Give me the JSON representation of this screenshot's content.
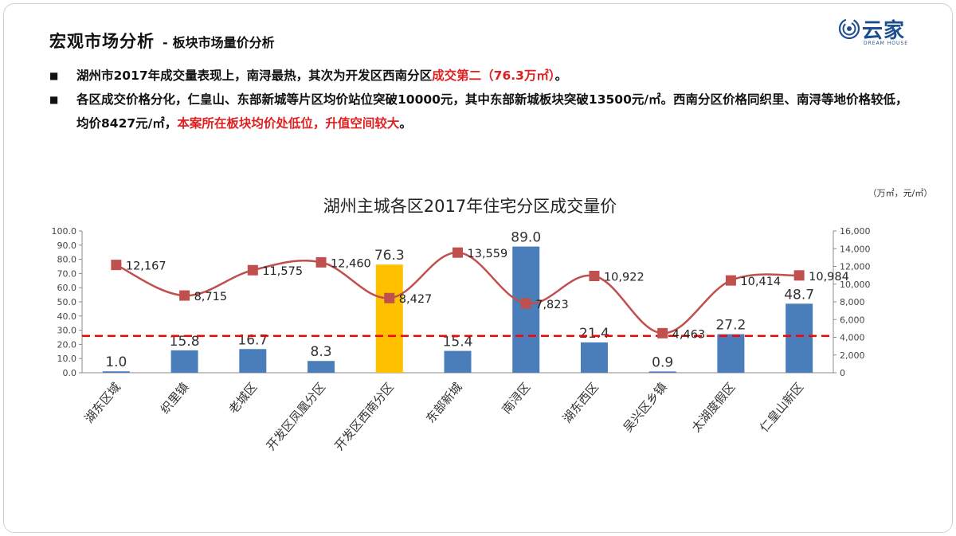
{
  "header": {
    "title": "宏观市场分析",
    "separator": "-",
    "subtitle": "板块市场量价分析"
  },
  "logo": {
    "name": "云家",
    "tagline": "DREAM HOUSE"
  },
  "bullets": [
    {
      "mark": "■",
      "text_normal": "湖州市2017年成交量表现上，南浔最热，其次为开发区西南分区",
      "text_red": "成交第二（76.3万㎡）",
      "text_tail": "。"
    },
    {
      "mark": "■",
      "text_normal": "各区成交价格分化，仁皇山、东部新城等片区均价站位突破10000元，其中东部新城板块突破13500元/㎡。西南分区价格同织里、南浔等地价格较低，均价8427元/㎡，",
      "text_red": "本案所在板块均价处低位，升值空间较大",
      "text_tail": "。"
    }
  ],
  "colors": {
    "bar": "#4a7ebb",
    "highlight_bar": "#ffc000",
    "line": "#c0504d",
    "marker": "#c0504d",
    "reference_line": "#ff0000",
    "accent_red": "#e02020",
    "logo_blue": "#1d4e8f"
  },
  "chart_data": {
    "type": "bar",
    "title": "湖州主城各区2017年住宅分区成交量价",
    "unit_note": "（万㎡，元/㎡）",
    "categories": [
      "湖东区域",
      "织里镇",
      "老城区",
      "开发区凤凰分区",
      "开发区西南分区",
      "东部新城",
      "南浔区",
      "湖东西区",
      "吴兴区乡镇",
      "太湖度假区",
      "仁皇山新区"
    ],
    "series": [
      {
        "axis": "left",
        "values": [
          1.0,
          15.8,
          16.7,
          8.3,
          76.3,
          15.4,
          89.0,
          21.4,
          0.9,
          27.2,
          48.7
        ],
        "labels": [
          "1.0",
          "15.8",
          "16.7",
          "8.3",
          "76.3",
          "15.4",
          "89.0",
          "21.4",
          "0.9",
          "27.2",
          "48.7"
        ],
        "highlight_index": 4
      },
      {
        "axis": "right",
        "type": "line",
        "values": [
          12167,
          8715,
          11575,
          12460,
          8427,
          13559,
          7823,
          10922,
          4463,
          10414,
          10984
        ],
        "labels": [
          "12,167",
          "8,715",
          "11,575",
          "12,460",
          "8,427",
          "13,559",
          "7,823",
          "10,922",
          "4,463",
          "10,414",
          "10,984"
        ]
      }
    ],
    "y_left": {
      "lim": [
        0,
        100
      ],
      "ticks": [
        "0.0",
        "10.0",
        "20.0",
        "30.0",
        "40.0",
        "50.0",
        "60.0",
        "70.0",
        "80.0",
        "90.0",
        "100.0"
      ]
    },
    "y_right": {
      "lim": [
        0,
        16000
      ],
      "ticks": [
        "0",
        "2,000",
        "4,000",
        "6,000",
        "8,000",
        "10,000",
        "12,000",
        "14,000",
        "16,000"
      ]
    },
    "reference_line_left_value": 26,
    "grid": false,
    "legend": "none"
  }
}
